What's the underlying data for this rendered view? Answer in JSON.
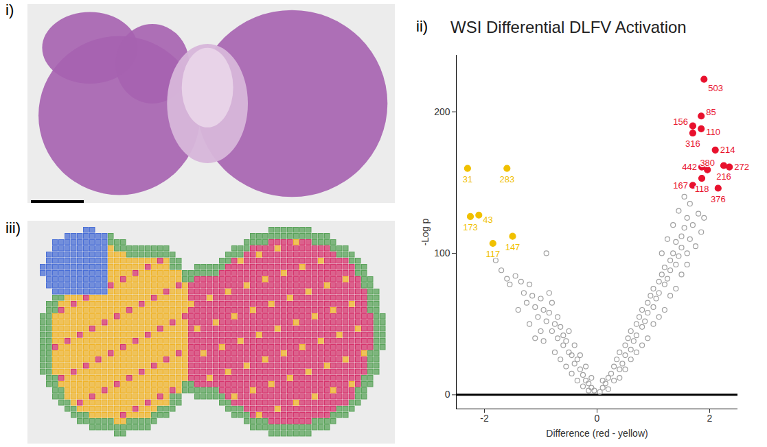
{
  "panel_labels": [
    "i)",
    "ii)",
    "iii)"
  ],
  "chart_data": {
    "type": "scatter",
    "title": "WSI Differential DLFV Activation",
    "x_label": "Difference (red - yellow)",
    "y_label": "-Log p",
    "xlim": [
      -2.5,
      2.5
    ],
    "xticks": [
      -2,
      0,
      2
    ],
    "ylim": [
      -10,
      240
    ],
    "yticks": [
      0,
      100,
      200
    ],
    "reference_lines": [
      {
        "y": 0
      }
    ],
    "data_labels": true,
    "series": [
      {
        "marker": "open circle",
        "color": "#a0a0a0",
        "x": [
          -1.8,
          -1.7,
          -1.6,
          -1.55,
          -1.45,
          -1.35,
          -1.3,
          -1.25,
          -1.2,
          -1.15,
          -1.1,
          -1.05,
          -1.0,
          -0.95,
          -0.9,
          -0.9,
          -0.85,
          -0.8,
          -0.8,
          -0.75,
          -0.7,
          -0.7,
          -0.65,
          -0.6,
          -0.6,
          -0.55,
          -0.5,
          -0.5,
          -0.45,
          -0.4,
          -0.4,
          -0.35,
          -0.3,
          -0.3,
          -0.25,
          -0.2,
          -0.2,
          -0.15,
          -0.1,
          -0.1,
          -0.05,
          -1.4,
          -1.2,
          -1.0,
          -0.85,
          -0.95,
          -1.1,
          -0.75,
          -0.65,
          -0.55,
          -0.45,
          -0.35,
          -0.25,
          -0.15,
          0.05,
          0.1,
          0.1,
          0.15,
          0.2,
          0.2,
          0.25,
          0.3,
          0.3,
          0.35,
          0.4,
          0.4,
          0.45,
          0.5,
          0.5,
          0.55,
          0.6,
          0.6,
          0.65,
          0.7,
          0.7,
          0.75,
          0.8,
          0.8,
          0.85,
          0.9,
          0.9,
          0.95,
          1.0,
          1.0,
          1.05,
          1.1,
          1.1,
          1.15,
          1.2,
          1.2,
          1.25,
          1.3,
          1.3,
          1.35,
          1.4,
          1.4,
          1.45,
          1.5,
          1.5,
          1.55,
          1.6,
          1.6,
          1.65,
          1.7,
          1.75,
          1.8,
          1.85,
          1.9,
          0.9,
          1.0,
          1.1,
          1.2,
          1.3,
          0.7,
          0.8,
          0.6,
          0.5,
          0.4,
          1.4,
          1.5,
          1.6,
          1.45,
          1.55,
          1.65,
          1.25,
          1.35,
          1.15
        ],
        "y": [
          95,
          88,
          82,
          78,
          84,
          80,
          72,
          65,
          78,
          70,
          62,
          55,
          68,
          60,
          100,
          52,
          58,
          45,
          65,
          50,
          40,
          55,
          48,
          35,
          42,
          38,
          30,
          45,
          28,
          22,
          35,
          25,
          18,
          28,
          14,
          10,
          20,
          8,
          5,
          12,
          3,
          60,
          50,
          45,
          72,
          38,
          40,
          30,
          25,
          20,
          15,
          10,
          6,
          3,
          2,
          5,
          10,
          8,
          12,
          4,
          15,
          20,
          10,
          25,
          18,
          30,
          22,
          35,
          28,
          40,
          32,
          45,
          38,
          50,
          42,
          55,
          48,
          60,
          52,
          65,
          58,
          70,
          62,
          75,
          68,
          80,
          72,
          85,
          78,
          90,
          82,
          95,
          88,
          100,
          92,
          108,
          98,
          112,
          104,
          118,
          100,
          125,
          110,
          120,
          105,
          128,
          115,
          125,
          40,
          50,
          55,
          60,
          70,
          30,
          35,
          25,
          18,
          12,
          75,
          85,
          92,
          130,
          140,
          135,
          110,
          120,
          100
        ]
      },
      {
        "marker": "filled circle",
        "color": "#f0c000",
        "x": [
          -2.3,
          -1.6,
          -2.25,
          -2.1,
          -1.85,
          -1.5
        ],
        "y": [
          160,
          160,
          126,
          127,
          107,
          112
        ],
        "labels": [
          "31",
          "283",
          "173",
          "43",
          "117",
          "147"
        ]
      },
      {
        "marker": "filled circle",
        "color": "#e8112d",
        "x": [
          1.9,
          1.85,
          1.7,
          1.85,
          1.7,
          2.1,
          2.35,
          1.86,
          1.96,
          2.25,
          1.7,
          1.86,
          2.15
        ],
        "y": [
          223,
          197,
          190,
          188,
          185,
          173,
          161,
          161,
          159,
          162,
          148,
          153,
          146
        ],
        "labels": [
          "503",
          "85",
          "156",
          "110",
          "316",
          "214",
          "272",
          "442",
          "380",
          "216",
          "167",
          "118",
          "376"
        ]
      }
    ]
  }
}
